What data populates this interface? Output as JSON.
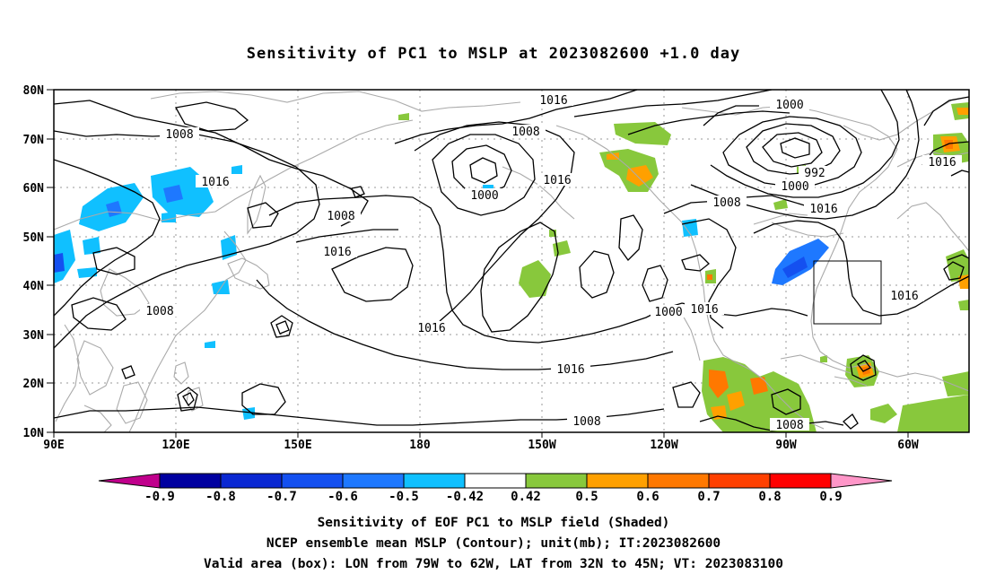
{
  "title": "Sensitivity of PC1 to MSLP at 2023082600 +1.0 day",
  "lat_labels": [
    "80N",
    "70N",
    "60N",
    "50N",
    "40N",
    "30N",
    "20N",
    "10N"
  ],
  "lon_labels": [
    "90E",
    "120E",
    "150E",
    "180",
    "150W",
    "120W",
    "90W",
    "60W"
  ],
  "colorbar": {
    "colors": [
      "#c0008c",
      "#0000a0",
      "#0a28d2",
      "#1450f0",
      "#1e78ff",
      "#10c0ff",
      "#ffffff",
      "#88c83c",
      "#ffa000",
      "#ff7800",
      "#ff4000",
      "#ff0000",
      "#ff96c8"
    ],
    "labels": [
      "-0.9",
      "-0.8",
      "-0.7",
      "-0.6",
      "-0.5",
      "-0.42",
      "0.42",
      "0.5",
      "0.6",
      "0.7",
      "0.8",
      "0.9"
    ]
  },
  "contour_labels": [
    {
      "text": "1016"
    },
    {
      "text": "1008"
    },
    {
      "text": "1000"
    },
    {
      "text": "1016"
    },
    {
      "text": "1008"
    },
    {
      "text": "1016"
    },
    {
      "text": "1008"
    },
    {
      "text": "1016"
    },
    {
      "text": "1000"
    },
    {
      "text": "992"
    },
    {
      "text": "1000"
    },
    {
      "text": "1008"
    },
    {
      "text": "1016"
    },
    {
      "text": "1016"
    },
    {
      "text": "1016"
    },
    {
      "text": "1016"
    },
    {
      "text": "1008"
    },
    {
      "text": "1016"
    },
    {
      "text": "1016"
    },
    {
      "text": "1008"
    },
    {
      "text": "1000"
    },
    {
      "text": "1016"
    },
    {
      "text": "1008"
    }
  ],
  "captions": {
    "line1": "Sensitivity of EOF PC1 to MSLP field (Shaded)",
    "line2": "NCEP ensemble mean MSLP (Contour); unit(mb); IT:2023082600",
    "line3": "Valid area (box): LON from 79W to 62W, LAT from 32N to 45N; VT: 2023083100"
  }
}
